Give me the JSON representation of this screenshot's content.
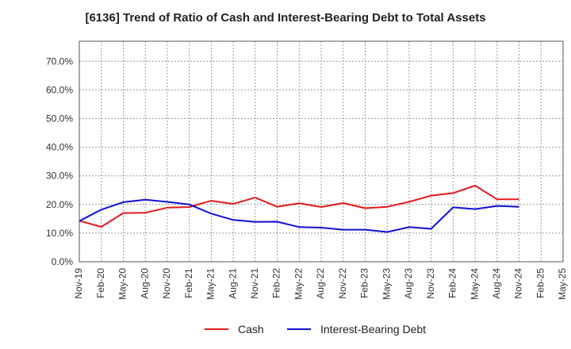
{
  "chart_data": {
    "type": "line",
    "title": "[6136]  Trend of Ratio of Cash and Interest-Bearing Debt to Total Assets",
    "xlabel": "",
    "ylabel": "",
    "ylim": [
      0,
      0.77
    ],
    "y_ticks": [
      0,
      0.1,
      0.2,
      0.3,
      0.4,
      0.5,
      0.6,
      0.7
    ],
    "y_tick_labels": [
      "0.0%",
      "10.0%",
      "20.0%",
      "30.0%",
      "40.0%",
      "50.0%",
      "60.0%",
      "70.0%"
    ],
    "grid": true,
    "legend_position": "bottom-center",
    "categories": [
      "Nov-19",
      "Feb-20",
      "May-20",
      "Aug-20",
      "Nov-20",
      "Feb-21",
      "May-21",
      "Aug-21",
      "Nov-21",
      "Feb-22",
      "May-22",
      "Aug-22",
      "Nov-22",
      "Feb-23",
      "May-23",
      "Aug-23",
      "Nov-23",
      "Feb-24",
      "May-24",
      "Aug-24",
      "Nov-24",
      "Feb-25",
      "May-25"
    ],
    "series": [
      {
        "name": "Cash",
        "color": "#e31a1c",
        "values": [
          0.143,
          0.122,
          0.17,
          0.171,
          0.189,
          0.191,
          0.213,
          0.202,
          0.224,
          0.192,
          0.204,
          0.191,
          0.205,
          0.187,
          0.192,
          0.209,
          0.231,
          0.24,
          0.266,
          0.218,
          0.218,
          null,
          null
        ]
      },
      {
        "name": "Interest-Bearing Debt",
        "color": "#1010d8",
        "values": [
          0.142,
          0.182,
          0.208,
          0.217,
          0.209,
          0.2,
          0.168,
          0.146,
          0.139,
          0.14,
          0.121,
          0.119,
          0.112,
          0.112,
          0.104,
          0.121,
          0.115,
          0.19,
          0.184,
          0.195,
          0.192,
          null,
          null
        ]
      }
    ]
  }
}
